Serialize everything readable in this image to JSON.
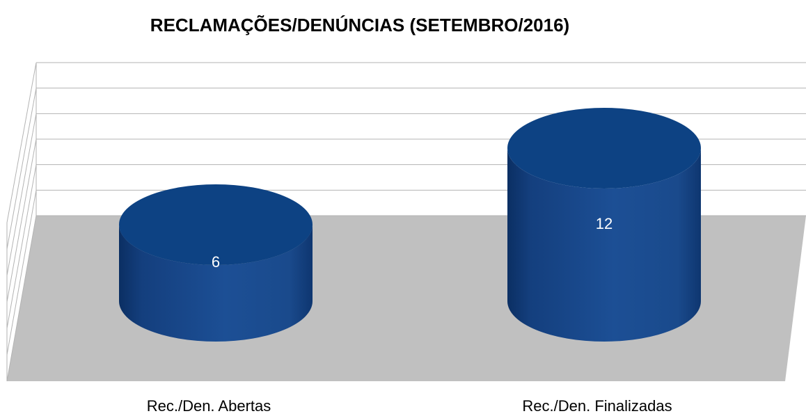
{
  "chart_data": {
    "type": "bar",
    "title": "RECLAMAÇÕES/DENÚNCIAS (SETEMBRO/2016)",
    "categories": [
      "Rec./Den. Abertas",
      "Rec./Den. Finalizadas"
    ],
    "values": [
      6,
      12
    ],
    "color": "#1a4f94",
    "ylim": [
      0,
      12
    ],
    "yticks": [
      0,
      2,
      4,
      6,
      8,
      10,
      12
    ],
    "grid": true
  }
}
